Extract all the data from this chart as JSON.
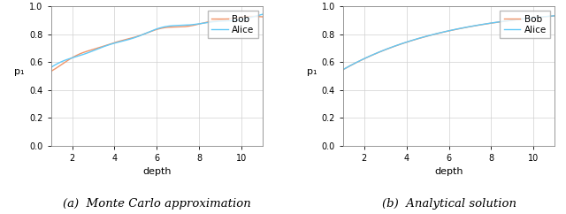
{
  "depth_min": 1,
  "depth_max": 11,
  "ylim": [
    0.0,
    1.0
  ],
  "xlim": [
    1,
    11
  ],
  "xlabel": "depth",
  "ylabel": "p₁",
  "alice_color": "#62c9f7",
  "bob_color": "#f0956a",
  "legend_labels": [
    "Alice",
    "Bob"
  ],
  "caption_a": "(a)  Monte Carlo approximation",
  "caption_b": "(b)  Analytical solution",
  "yticks": [
    0.0,
    0.2,
    0.4,
    0.6,
    0.8,
    1.0
  ],
  "xticks": [
    2,
    4,
    6,
    8,
    10
  ],
  "grid_color": "#d0d0d0",
  "background_color": "#ffffff",
  "caption_fontsize": 9.5,
  "axis_label_fontsize": 8,
  "tick_fontsize": 7,
  "legend_fontsize": 7.5,
  "line_width": 1.0
}
